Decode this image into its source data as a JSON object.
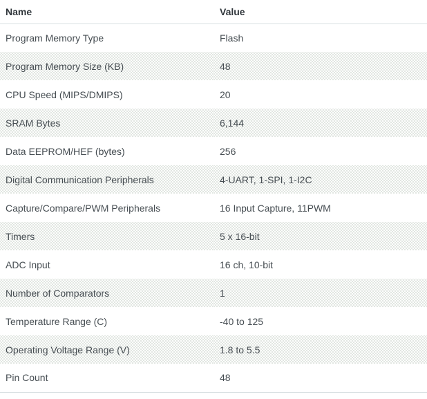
{
  "table": {
    "columns": [
      "Name",
      "Value"
    ],
    "rows": [
      {
        "name": "Program Memory Type",
        "value": "Flash"
      },
      {
        "name": "Program Memory Size (KB)",
        "value": "48"
      },
      {
        "name": "CPU Speed (MIPS/DMIPS)",
        "value": "20"
      },
      {
        "name": "SRAM Bytes",
        "value": "6,144"
      },
      {
        "name": "Data EEPROM/HEF (bytes)",
        "value": "256"
      },
      {
        "name": "Digital Communication Peripherals",
        "value": "4-UART, 1-SPI, 1-I2C"
      },
      {
        "name": "Capture/Compare/PWM Peripherals",
        "value": "16 Input Capture, 11PWM"
      },
      {
        "name": "Timers",
        "value": "5 x 16-bit"
      },
      {
        "name": "ADC Input",
        "value": "16 ch, 10-bit"
      },
      {
        "name": "Number of Comparators",
        "value": "1"
      },
      {
        "name": "Temperature Range (C)",
        "value": "-40 to 125"
      },
      {
        "name": "Operating Voltage Range (V)",
        "value": "1.8 to 5.5"
      },
      {
        "name": "Pin Count",
        "value": "48"
      }
    ]
  },
  "colors": {
    "header_text": "#31373c",
    "body_text": "#464d52",
    "divider": "#d9e0e2",
    "stripe_dot": "#dde3dd",
    "background": "#ffffff"
  }
}
